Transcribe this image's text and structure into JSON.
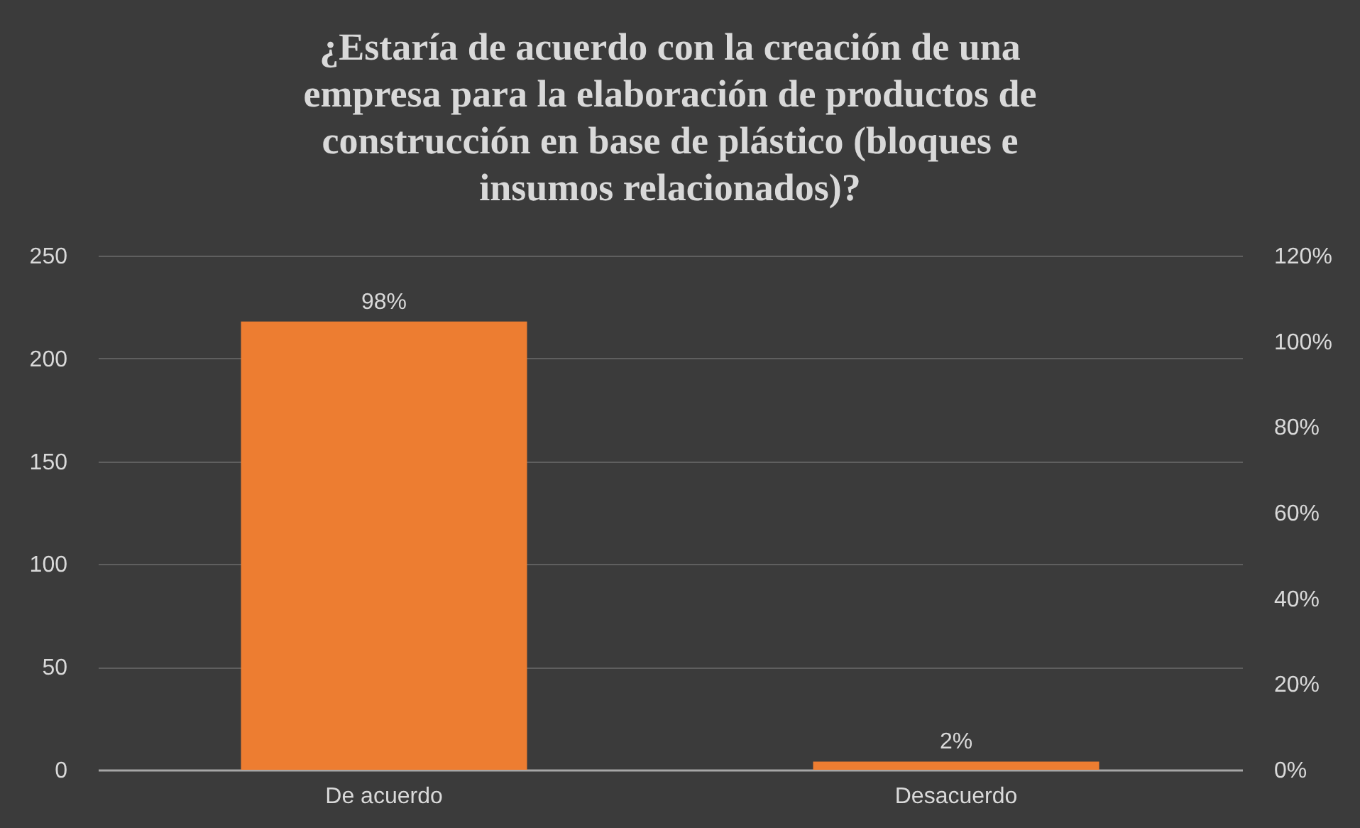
{
  "chart_data": {
    "type": "bar",
    "title": "¿Estaría de acuerdo con la creación de una empresa para la elaboración de productos de construcción en base de plástico (bloques e insumos relacionados)?",
    "categories": [
      "De acuerdo",
      "Desacuerdo"
    ],
    "series": [
      {
        "color": "#ed7d31",
        "values": [
          218,
          4
        ]
      }
    ],
    "annotations": [
      {
        "text": "98%",
        "x": "De acuerdo",
        "y": 218
      },
      {
        "text": "2%",
        "x": "Desacuerdo",
        "y": 4
      }
    ],
    "ylim": [
      0,
      250
    ],
    "yticks": [
      0,
      50,
      100,
      150,
      200,
      250
    ],
    "y2lim": [
      0,
      120
    ],
    "y2ticks": [
      {
        "value": 0,
        "label": "0%"
      },
      {
        "value": 20,
        "label": "20%"
      },
      {
        "value": 40,
        "label": "40%"
      },
      {
        "value": 60,
        "label": "60%"
      },
      {
        "value": 80,
        "label": "80%"
      },
      {
        "value": 100,
        "label": "100%"
      },
      {
        "value": 120,
        "label": "120%"
      }
    ],
    "grid": "y",
    "legend": false
  }
}
